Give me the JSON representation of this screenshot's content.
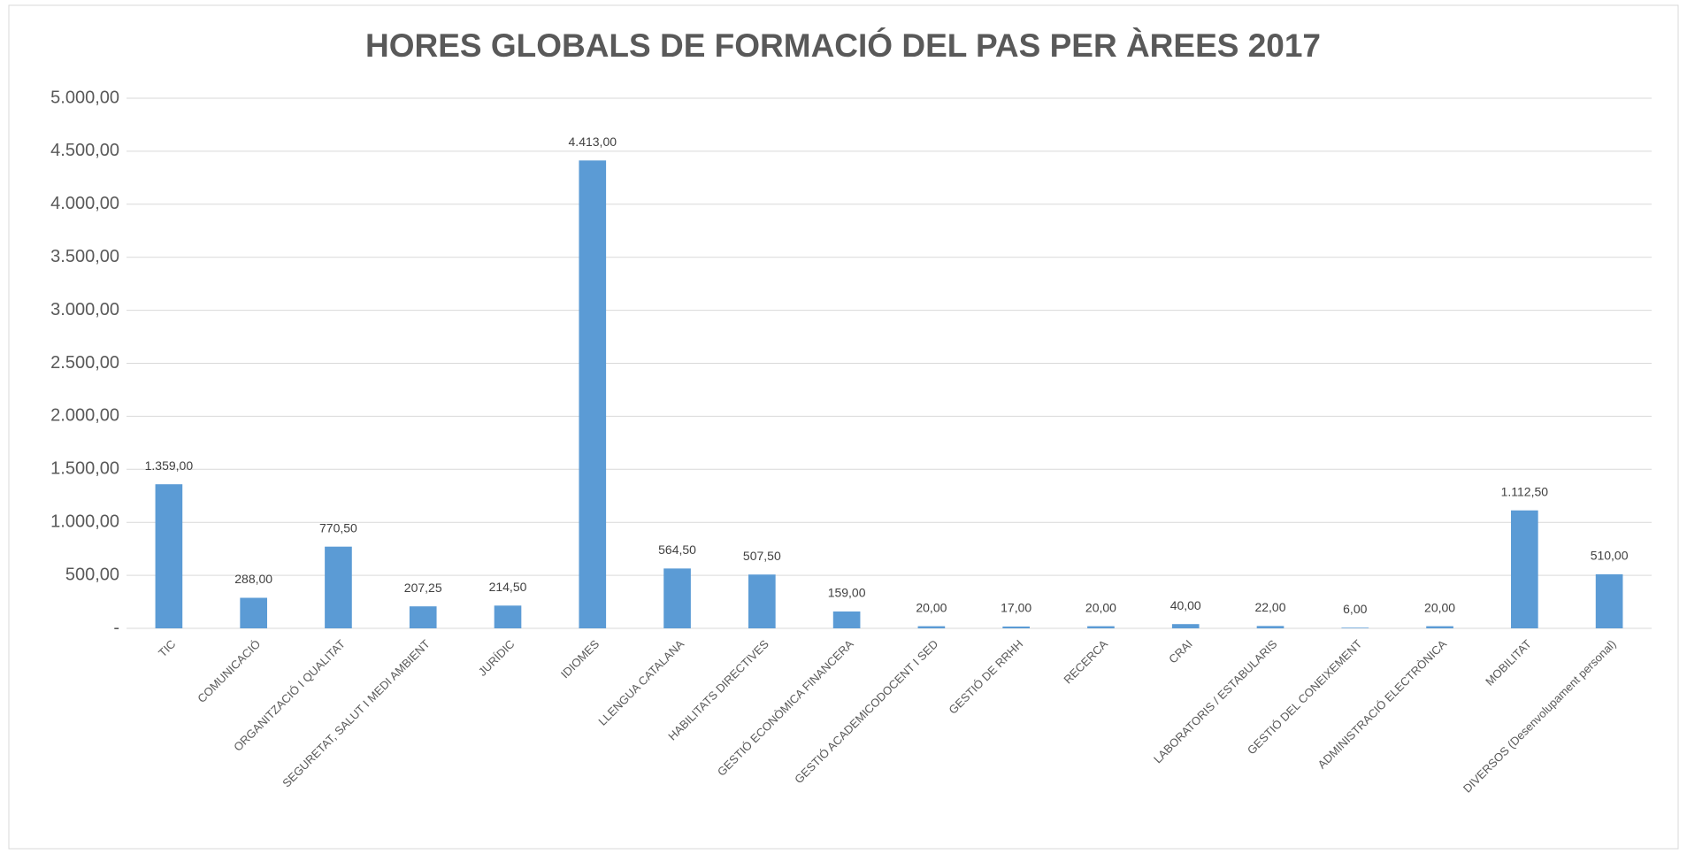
{
  "chart_data": {
    "type": "bar",
    "title": "HORES GLOBALS DE FORMACIÓ DEL PAS PER ÀREES 2017",
    "categories": [
      "TIC",
      "COMUNICACIÓ",
      "ORGANITZACIÓ I QUALITAT",
      "SEGURETAT, SALUT  I MEDI AMBIENT",
      "JURÍDIC",
      "IDIOMES",
      "LLENGUA CATALANA",
      "HABILITATS DIRECTIVES",
      "GESTIÓ ECONÒMICA FINANCERA",
      "GESTIÓ ACADEMICODOCENT I SED",
      "GESTIÓ DE RRHH",
      "RECERCA",
      "CRAI",
      "LABORATORIS / ESTABULARIS",
      "GESTIÓ DEL CONEIXEMENT",
      "ADMINISTRACIÓ ELECTRÒNICA",
      "MOBILITAT",
      "DIVERSOS (Desenvolupament personal)"
    ],
    "values": [
      1359,
      288,
      770.5,
      207.25,
      214.5,
      4413,
      564.5,
      507.5,
      159,
      20,
      17,
      20,
      40,
      22,
      6,
      20,
      1112.5,
      510
    ],
    "value_labels": [
      "1.359,00",
      "288,00",
      "770,50",
      "207,25",
      "214,50",
      "4.413,00",
      "564,50",
      "507,50",
      "159,00",
      "20,00",
      "17,00",
      "20,00",
      "40,00",
      "22,00",
      "6,00",
      "20,00",
      "1.112,50",
      "510,00"
    ],
    "color": "#5b9bd5",
    "ylim": [
      0,
      5000
    ],
    "yticks": [
      {
        "value": 0,
        "label": "-"
      },
      {
        "value": 500,
        "label": "500,00"
      },
      {
        "value": 1000,
        "label": "1.000,00"
      },
      {
        "value": 1500,
        "label": "1.500,00"
      },
      {
        "value": 2000,
        "label": "2.000,00"
      },
      {
        "value": 2500,
        "label": "2.500,00"
      },
      {
        "value": 3000,
        "label": "3.000,00"
      },
      {
        "value": 3500,
        "label": "3.500,00"
      },
      {
        "value": 4000,
        "label": "4.000,00"
      },
      {
        "value": 4500,
        "label": "4.500,00"
      },
      {
        "value": 5000,
        "label": "5.000,00"
      }
    ],
    "grid": true
  }
}
